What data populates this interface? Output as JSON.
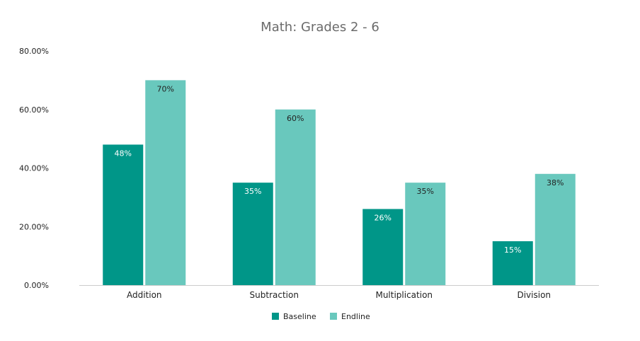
{
  "chart_data": {
    "type": "bar",
    "title": "Math: Grades 2 - 6",
    "categories": [
      "Addition",
      "Subtraction",
      "Multiplication",
      "Division"
    ],
    "series": [
      {
        "name": "Baseline",
        "values": [
          48,
          35,
          26,
          15
        ],
        "labels": [
          "48%",
          "35%",
          "26%",
          "15%"
        ],
        "color": "#009688",
        "label_color": "#ffffff"
      },
      {
        "name": "Endline",
        "values": [
          70,
          60,
          35,
          38
        ],
        "labels": [
          "70%",
          "60%",
          "35%",
          "38%"
        ],
        "color": "#69c8bd",
        "label_color": "#222222"
      }
    ],
    "ylim": [
      0,
      80
    ],
    "yticks": [
      0,
      20,
      40,
      60,
      80
    ],
    "ytick_labels": [
      "0.00%",
      "20.00%",
      "40.00%",
      "60.00%",
      "80.00%"
    ],
    "grid": false,
    "legend_position": "bottom-center"
  },
  "colors": {
    "title": "#6b6b6b",
    "axis_text": "#222222",
    "axis_line": "#cccccc"
  }
}
